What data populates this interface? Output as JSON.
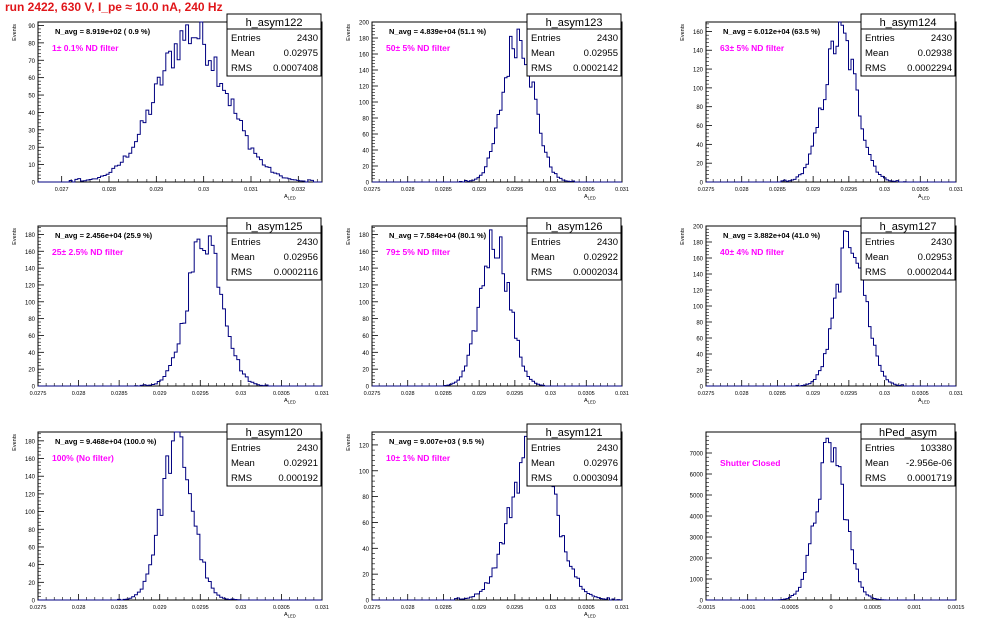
{
  "header": {
    "run_title": "run 2422,   630 V, I_pe ≈ 10.0 nA, 240 Hz"
  },
  "stats_labels": {
    "entries": "Entries",
    "mean": "Mean",
    "rms": "RMS"
  },
  "colors": {
    "histogram": "#000080",
    "annotation": "#ff00ff",
    "title": "#e0161a",
    "axis": "#000000"
  },
  "chart_data": [
    {
      "type": "histogram",
      "name": "h_asym122",
      "navg": "N_avg = 8.919e+02 ( 0.9 %)",
      "label": "1± 0.1% ND filter",
      "stats": {
        "entries": "2430",
        "mean": "0.02975",
        "rms": "0.0007408"
      },
      "xlabel": "A_LED",
      "ylabel": "Events",
      "xlim": [
        0.0265,
        0.0325
      ],
      "ylim": [
        0,
        92
      ],
      "xticks": [
        "0.027",
        "0.028",
        "0.029",
        "0.03",
        "0.031",
        "0.032"
      ],
      "yticks": [
        "0",
        "10",
        "20",
        "30",
        "40",
        "50",
        "60",
        "70",
        "80",
        "90"
      ],
      "dist": {
        "mean": 0.02975,
        "sigma": 0.00074,
        "peak": 86,
        "nbins": 100
      }
    },
    {
      "type": "histogram",
      "name": "h_asym123",
      "navg": "N_avg = 4.839e+04 (51.1 %)",
      "label": "50± 5% ND filter",
      "stats": {
        "entries": "2430",
        "mean": "0.02955",
        "rms": "0.0002142"
      },
      "xlabel": "A_LED",
      "ylabel": "Events",
      "xlim": [
        0.0275,
        0.031
      ],
      "ylim": [
        0,
        200
      ],
      "xticks": [
        "0.0275",
        "0.028",
        "0.0285",
        "0.029",
        "0.0295",
        "0.03",
        "0.0305",
        "0.031"
      ],
      "yticks": [
        "0",
        "20",
        "40",
        "60",
        "80",
        "100",
        "120",
        "140",
        "160",
        "180",
        "200"
      ],
      "dist": {
        "mean": 0.02955,
        "sigma": 0.000214,
        "peak": 185,
        "nbins": 100
      }
    },
    {
      "type": "histogram",
      "name": "h_asym124",
      "navg": "N_avg = 6.012e+04 (63.5 %)",
      "label": "63± 5% ND filter",
      "stats": {
        "entries": "2430",
        "mean": "0.02938",
        "rms": "0.0002294"
      },
      "xlabel": "A_LED",
      "ylabel": "Events",
      "xlim": [
        0.0275,
        0.031
      ],
      "ylim": [
        0,
        170
      ],
      "xticks": [
        "0.0275",
        "0.028",
        "0.0285",
        "0.029",
        "0.0295",
        "0.03",
        "0.0305",
        "0.031"
      ],
      "yticks": [
        "0",
        "20",
        "40",
        "60",
        "80",
        "100",
        "120",
        "140",
        "160"
      ],
      "dist": {
        "mean": 0.02938,
        "sigma": 0.000229,
        "peak": 155,
        "nbins": 100
      }
    },
    {
      "type": "histogram",
      "name": "h_asym125",
      "navg": "N_avg = 2.456e+04 (25.9 %)",
      "label": "25± 2.5% ND filter",
      "stats": {
        "entries": "2430",
        "mean": "0.02956",
        "rms": "0.0002116"
      },
      "xlabel": "A_LED",
      "ylabel": "Events",
      "xlim": [
        0.0275,
        0.031
      ],
      "ylim": [
        0,
        190
      ],
      "xticks": [
        "0.0275",
        "0.028",
        "0.0285",
        "0.029",
        "0.0295",
        "0.03",
        "0.0305",
        "0.031"
      ],
      "yticks": [
        "0",
        "20",
        "40",
        "60",
        "80",
        "100",
        "120",
        "140",
        "160",
        "180"
      ],
      "dist": {
        "mean": 0.02956,
        "sigma": 0.000212,
        "peak": 180,
        "nbins": 100
      }
    },
    {
      "type": "histogram",
      "name": "h_asym126",
      "navg": "N_avg = 7.584e+04 (80.1 %)",
      "label": "79± 5% ND filter",
      "stats": {
        "entries": "2430",
        "mean": "0.02922",
        "rms": "0.0002034"
      },
      "xlabel": "A_LED",
      "ylabel": "Events",
      "xlim": [
        0.0275,
        0.031
      ],
      "ylim": [
        0,
        190
      ],
      "xticks": [
        "0.0275",
        "0.028",
        "0.0285",
        "0.029",
        "0.0295",
        "0.03",
        "0.0305",
        "0.031"
      ],
      "yticks": [
        "0",
        "20",
        "40",
        "60",
        "80",
        "100",
        "120",
        "140",
        "160",
        "180"
      ],
      "dist": {
        "mean": 0.02922,
        "sigma": 0.000203,
        "peak": 175,
        "nbins": 100
      }
    },
    {
      "type": "histogram",
      "name": "h_asym127",
      "navg": "N_avg = 3.882e+04 (41.0 %)",
      "label": "40± 4% ND filter",
      "stats": {
        "entries": "2430",
        "mean": "0.02953",
        "rms": "0.0002044"
      },
      "xlabel": "A_LED",
      "ylabel": "Events",
      "xlim": [
        0.0275,
        0.031
      ],
      "ylim": [
        0,
        200
      ],
      "xticks": [
        "0.0275",
        "0.028",
        "0.0285",
        "0.029",
        "0.0295",
        "0.03",
        "0.0305",
        "0.031"
      ],
      "yticks": [
        "0",
        "20",
        "40",
        "60",
        "80",
        "100",
        "120",
        "140",
        "160",
        "180",
        "200"
      ],
      "dist": {
        "mean": 0.02953,
        "sigma": 0.000204,
        "peak": 185,
        "nbins": 100
      }
    },
    {
      "type": "histogram",
      "name": "h_asym120",
      "navg": "N_avg = 9.468e+04 (100.0 %)",
      "label": "100% (No filter)",
      "stats": {
        "entries": "2430",
        "mean": "0.02921",
        "rms": "0.000192"
      },
      "xlabel": "A_LED",
      "ylabel": "Events",
      "xlim": [
        0.0275,
        0.031
      ],
      "ylim": [
        0,
        190
      ],
      "xticks": [
        "0.0275",
        "0.028",
        "0.0285",
        "0.029",
        "0.0295",
        "0.03",
        "0.0305",
        "0.031"
      ],
      "yticks": [
        "0",
        "20",
        "40",
        "60",
        "80",
        "100",
        "120",
        "140",
        "160",
        "180"
      ],
      "dist": {
        "mean": 0.02921,
        "sigma": 0.000192,
        "peak": 178,
        "nbins": 100
      }
    },
    {
      "type": "histogram",
      "name": "h_asym121",
      "navg": "N_avg = 9.007e+03 ( 9.5 %)",
      "label": "10± 1% ND filter",
      "stats": {
        "entries": "2430",
        "mean": "0.02976",
        "rms": "0.0003094"
      },
      "xlabel": "A_LED",
      "ylabel": "Events",
      "xlim": [
        0.0275,
        0.031
      ],
      "ylim": [
        0,
        130
      ],
      "xticks": [
        "0.0275",
        "0.028",
        "0.0285",
        "0.029",
        "0.0295",
        "0.03",
        "0.0305",
        "0.031"
      ],
      "yticks": [
        "0",
        "20",
        "40",
        "60",
        "80",
        "100",
        "120"
      ],
      "dist": {
        "mean": 0.02976,
        "sigma": 0.00031,
        "peak": 122,
        "nbins": 100
      }
    },
    {
      "type": "histogram",
      "name": "hPed_asym",
      "navg": "",
      "label": "Shutter Closed",
      "stats": {
        "entries": "103380",
        "mean": "-2.956e-06",
        "rms": "0.0001719"
      },
      "xlabel": "",
      "ylabel": "",
      "xlim": [
        -0.0015,
        0.0015
      ],
      "ylim": [
        0,
        8000
      ],
      "xticks": [
        "-0.0015",
        "-0.001",
        "-0.0005",
        "0",
        "0.0005",
        "0.001",
        "0.0015"
      ],
      "yticks": [
        "0",
        "1000",
        "2000",
        "3000",
        "4000",
        "5000",
        "6000",
        "7000"
      ],
      "dist": {
        "mean": -3e-06,
        "sigma": 0.000172,
        "peak": 7200,
        "nbins": 100
      }
    }
  ]
}
